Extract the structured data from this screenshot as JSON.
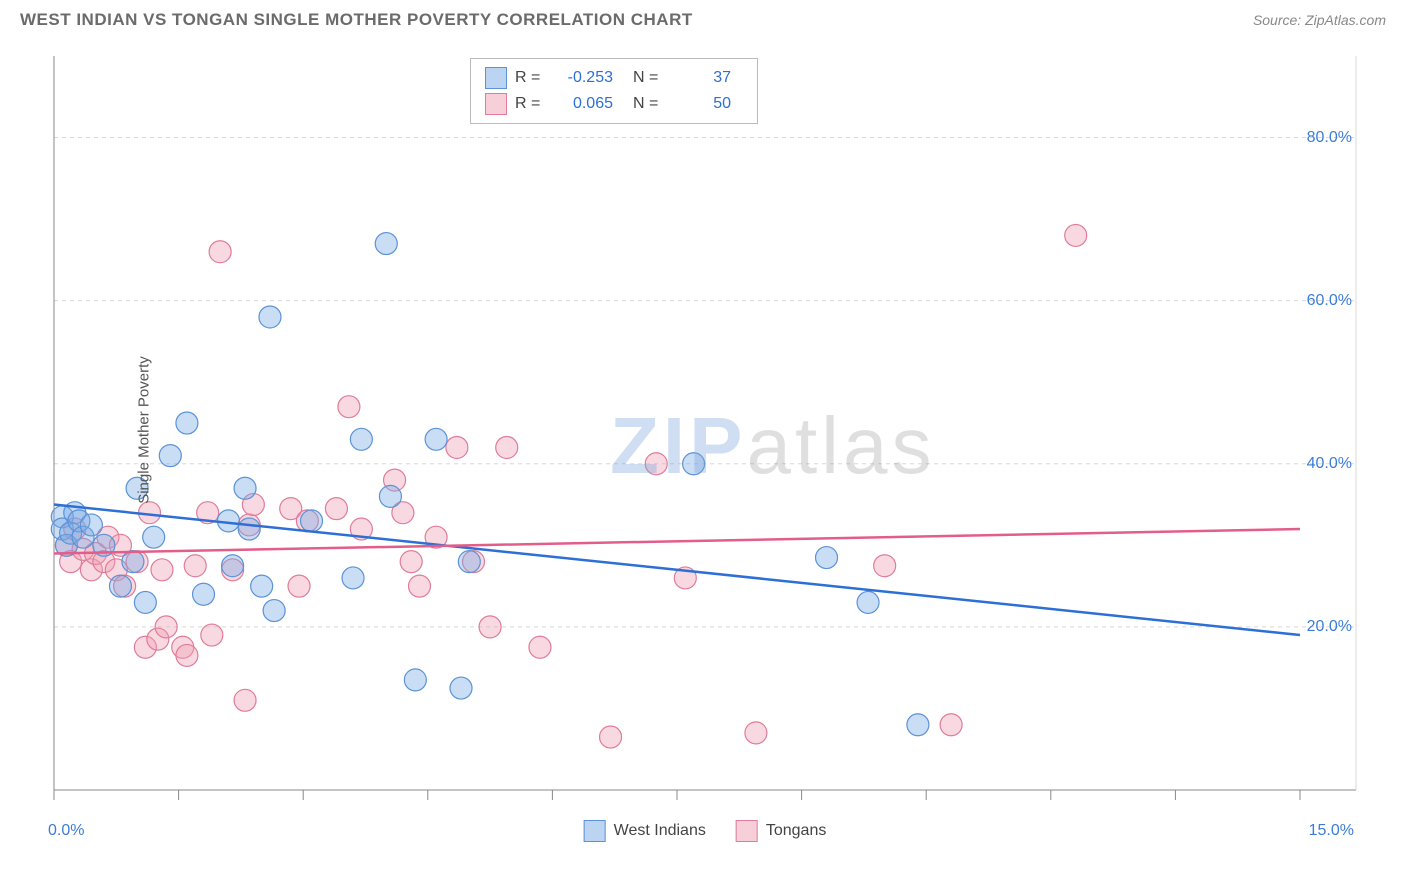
{
  "header": {
    "title": "WEST INDIAN VS TONGAN SINGLE MOTHER POVERTY CORRELATION CHART",
    "source": "Source: ZipAtlas.com"
  },
  "chart": {
    "type": "scatter",
    "y_axis_label": "Single Mother Poverty",
    "xlim": [
      0,
      15
    ],
    "ylim": [
      0,
      90
    ],
    "x_ticks_label_left": "0.0%",
    "x_ticks_label_right": "15.0%",
    "y_tick_labels": [
      {
        "value": 20,
        "label": "20.0%"
      },
      {
        "value": 40,
        "label": "40.0%"
      },
      {
        "value": 60,
        "label": "60.0%"
      },
      {
        "value": 80,
        "label": "80.0%"
      }
    ],
    "x_minor_ticks": [
      0,
      1.5,
      3,
      4.5,
      6,
      7.5,
      9,
      10.5,
      12,
      13.5,
      15
    ],
    "grid_color": "#d8d8d8",
    "axis_color": "#888888",
    "background_color": "#ffffff",
    "marker_radius": 11,
    "marker_stroke_width": 1.2,
    "trend_line_width": 2.5,
    "series": [
      {
        "name": "West Indians",
        "fill": "rgba(120,170,230,0.40)",
        "stroke": "#5b93d6",
        "trend_color": "#2d6fd6",
        "R": "-0.253",
        "N": "37",
        "trend": {
          "y_at_x0": 35,
          "y_at_xmax": 19
        },
        "points": [
          [
            0.1,
            33.5
          ],
          [
            0.1,
            32
          ],
          [
            0.15,
            30
          ],
          [
            0.2,
            31.5
          ],
          [
            0.25,
            34
          ],
          [
            0.3,
            33
          ],
          [
            0.35,
            31
          ],
          [
            0.45,
            32.5
          ],
          [
            0.6,
            30
          ],
          [
            0.8,
            25
          ],
          [
            0.95,
            28
          ],
          [
            1.0,
            37
          ],
          [
            1.1,
            23
          ],
          [
            1.2,
            31
          ],
          [
            1.4,
            41
          ],
          [
            1.6,
            45
          ],
          [
            1.8,
            24
          ],
          [
            2.1,
            33
          ],
          [
            2.15,
            27.5
          ],
          [
            2.3,
            37
          ],
          [
            2.35,
            32
          ],
          [
            2.5,
            25
          ],
          [
            2.6,
            58
          ],
          [
            2.65,
            22
          ],
          [
            3.1,
            33
          ],
          [
            3.6,
            26
          ],
          [
            3.7,
            43
          ],
          [
            4.0,
            67
          ],
          [
            4.05,
            36
          ],
          [
            4.35,
            13.5
          ],
          [
            4.6,
            43
          ],
          [
            4.9,
            12.5
          ],
          [
            5.0,
            28
          ],
          [
            7.7,
            40
          ],
          [
            9.3,
            28.5
          ],
          [
            9.8,
            23
          ],
          [
            10.4,
            8
          ]
        ]
      },
      {
        "name": "Tongans",
        "fill": "rgba(240,160,180,0.40)",
        "stroke": "#e07c9a",
        "trend_color": "#e25d88",
        "R": "0.065",
        "N": "50",
        "trend": {
          "y_at_x0": 29,
          "y_at_xmax": 32
        },
        "points": [
          [
            0.15,
            30
          ],
          [
            0.2,
            28
          ],
          [
            0.25,
            32
          ],
          [
            0.35,
            29.5
          ],
          [
            0.45,
            27
          ],
          [
            0.5,
            29
          ],
          [
            0.6,
            28
          ],
          [
            0.65,
            31
          ],
          [
            0.75,
            27
          ],
          [
            0.8,
            30
          ],
          [
            0.85,
            25
          ],
          [
            1.0,
            28
          ],
          [
            1.1,
            17.5
          ],
          [
            1.15,
            34
          ],
          [
            1.25,
            18.5
          ],
          [
            1.3,
            27
          ],
          [
            1.35,
            20
          ],
          [
            1.55,
            17.5
          ],
          [
            1.6,
            16.5
          ],
          [
            1.7,
            27.5
          ],
          [
            1.85,
            34
          ],
          [
            1.9,
            19
          ],
          [
            2.0,
            66
          ],
          [
            2.15,
            27
          ],
          [
            2.3,
            11
          ],
          [
            2.35,
            32.5
          ],
          [
            2.4,
            35
          ],
          [
            2.85,
            34.5
          ],
          [
            2.95,
            25
          ],
          [
            3.05,
            33
          ],
          [
            3.4,
            34.5
          ],
          [
            3.55,
            47
          ],
          [
            3.7,
            32
          ],
          [
            4.1,
            38
          ],
          [
            4.2,
            34
          ],
          [
            4.3,
            28
          ],
          [
            4.4,
            25
          ],
          [
            4.6,
            31
          ],
          [
            4.85,
            42
          ],
          [
            5.05,
            28
          ],
          [
            5.25,
            20
          ],
          [
            5.45,
            42
          ],
          [
            5.85,
            17.5
          ],
          [
            6.7,
            6.5
          ],
          [
            7.25,
            40
          ],
          [
            7.6,
            26
          ],
          [
            8.45,
            7
          ],
          [
            10.0,
            27.5
          ],
          [
            10.8,
            8
          ],
          [
            12.3,
            68
          ]
        ]
      }
    ],
    "watermark": {
      "zip": "ZIP",
      "atlas": "atlas"
    },
    "bottom_legend": [
      {
        "swatch": "blue",
        "label": "West Indians"
      },
      {
        "swatch": "pink",
        "label": "Tongans"
      }
    ]
  }
}
